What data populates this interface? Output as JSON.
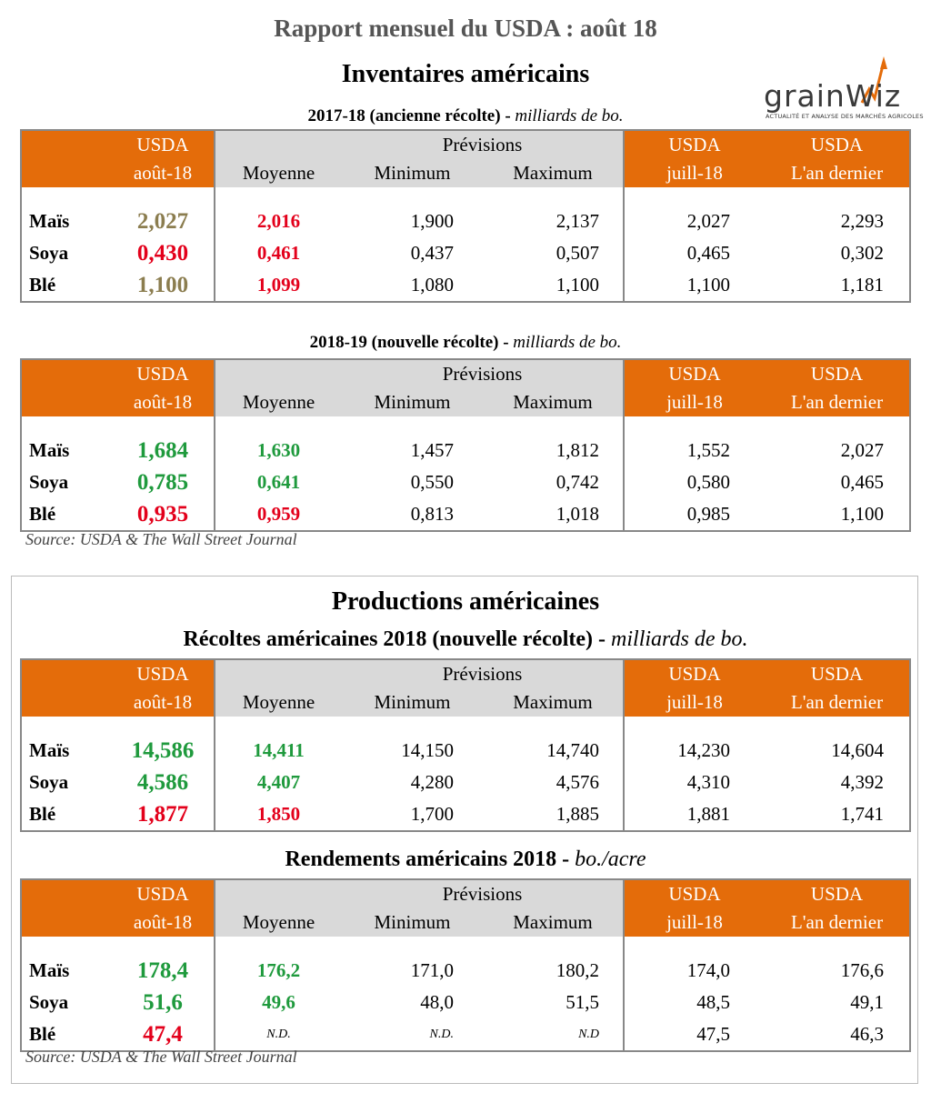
{
  "title": "Rapport mensuel du USDA : août 18",
  "logo": {
    "brand": "grainWiz",
    "tagline": "ACTUALITÉ ET ANALYSE DES MARCHÉS AGRICOLES",
    "accent_color": "#e46c0a"
  },
  "headers": {
    "usda": "USDA",
    "current": "août-18",
    "previsions": "Prévisions",
    "moyenne": "Moyenne",
    "minimum": "Minimum",
    "maximum": "Maximum",
    "previous": "juill-18",
    "last_year": "L'an dernier"
  },
  "inventaires": {
    "title": "Inventaires américains",
    "old_crop": {
      "label": "2017-18 (ancienne récolte)",
      "unit": "milliards de bo.",
      "rows": [
        {
          "name": "Maïs",
          "usda": "2,027",
          "moyenne": "2,016",
          "minimum": "1,900",
          "maximum": "2,137",
          "juillet": "2,027",
          "last_year": "2,293"
        },
        {
          "name": "Soya",
          "usda": "0,430",
          "moyenne": "0,461",
          "minimum": "0,437",
          "maximum": "0,507",
          "juillet": "0,465",
          "last_year": "0,302"
        },
        {
          "name": "Blé",
          "usda": "1,100",
          "moyenne": "1,099",
          "minimum": "1,080",
          "maximum": "1,100",
          "juillet": "1,100",
          "last_year": "1,181"
        }
      ]
    },
    "new_crop": {
      "label": "2018-19 (nouvelle récolte)",
      "unit": "milliards de bo.",
      "rows": [
        {
          "name": "Maïs",
          "usda": "1,684",
          "moyenne": "1,630",
          "minimum": "1,457",
          "maximum": "1,812",
          "juillet": "1,552",
          "last_year": "2,027"
        },
        {
          "name": "Soya",
          "usda": "0,785",
          "moyenne": "0,641",
          "minimum": "0,550",
          "maximum": "0,742",
          "juillet": "0,580",
          "last_year": "0,465"
        },
        {
          "name": "Blé",
          "usda": "0,935",
          "moyenne": "0,959",
          "minimum": "0,813",
          "maximum": "1,018",
          "juillet": "0,985",
          "last_year": "1,100"
        }
      ]
    },
    "source": "Source: USDA & The Wall Street Journal"
  },
  "productions": {
    "title": "Productions américaines",
    "recoltes": {
      "label": "Récoltes américaines 2018 (nouvelle récolte)",
      "unit": "milliards de bo.",
      "rows": [
        {
          "name": "Maïs",
          "usda": "14,586",
          "moyenne": "14,411",
          "minimum": "14,150",
          "maximum": "14,740",
          "juillet": "14,230",
          "last_year": "14,604"
        },
        {
          "name": "Soya",
          "usda": "4,586",
          "moyenne": "4,407",
          "minimum": "4,280",
          "maximum": "4,576",
          "juillet": "4,310",
          "last_year": "4,392"
        },
        {
          "name": "Blé",
          "usda": "1,877",
          "moyenne": "1,850",
          "minimum": "1,700",
          "maximum": "1,885",
          "juillet": "1,881",
          "last_year": "1,741"
        }
      ]
    },
    "rendements": {
      "label": "Rendements américains 2018",
      "unit": "bo./acre",
      "rows": [
        {
          "name": "Maïs",
          "usda": "178,4",
          "moyenne": "176,2",
          "minimum": "171,0",
          "maximum": "180,2",
          "juillet": "174,0",
          "last_year": "176,6"
        },
        {
          "name": "Soya",
          "usda": "51,6",
          "moyenne": "49,6",
          "minimum": "48,0",
          "maximum": "51,5",
          "juillet": "48,5",
          "last_year": "49,1"
        },
        {
          "name": "Blé",
          "usda": "47,4",
          "moyenne": "N.D.",
          "minimum": "N.D.",
          "maximum": "N.D",
          "juillet": "47,5",
          "last_year": "46,3"
        }
      ]
    },
    "source": "Source: USDA & The Wall Street Journal"
  }
}
